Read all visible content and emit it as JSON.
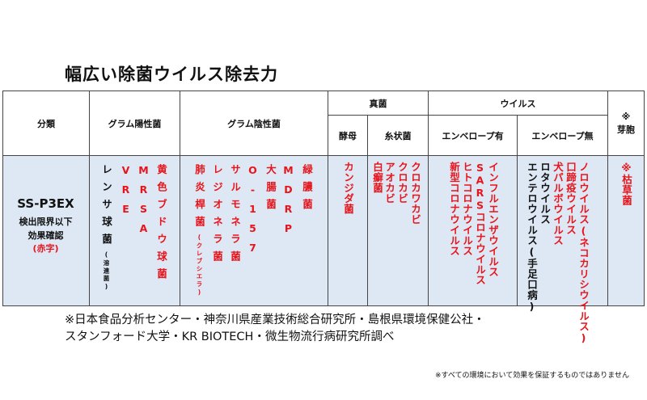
{
  "title": "幅広い除菌ウイルス除去力",
  "table": {
    "headers": {
      "classification": "分類",
      "gram_positive": "グラム陽性菌",
      "gram_negative": "グラム陰性菌",
      "fungi": "真菌",
      "yeast": "酵母",
      "mold": "糸状菌",
      "virus": "ウイルス",
      "enveloped": "エンベロープ有",
      "non_enveloped": "エンベロープ無",
      "spore_mark": "※",
      "spore": "芽胞"
    },
    "product": {
      "model": "SS-P3EX",
      "note_line1": "検出限界以下",
      "note_line2": "効果確認",
      "note_red": "(赤字)"
    },
    "gram_positive": [
      {
        "name": "レンサ球菌",
        "sub": "(溶連菌)",
        "confirmed": false
      },
      {
        "name": "VRE",
        "confirmed": true
      },
      {
        "name": "MRSA",
        "confirmed": true
      },
      {
        "name": "黄色ブドウ球菌",
        "confirmed": true
      }
    ],
    "gram_negative": [
      {
        "name": "肺炎桿菌",
        "sub": "(クレブシエラ)",
        "confirmed": true
      },
      {
        "name": "レジオネラ菌",
        "confirmed": true
      },
      {
        "name": "サルモネラ菌",
        "confirmed": true
      },
      {
        "name": "O-157",
        "confirmed": true
      },
      {
        "name": "大腸菌",
        "confirmed": true
      },
      {
        "name": "MDRP",
        "confirmed": true
      },
      {
        "name": "緑膿菌",
        "confirmed": true
      }
    ],
    "yeast": [
      {
        "name": "カンジダ菌",
        "confirmed": true
      }
    ],
    "mold": [
      {
        "name": "白癬菌",
        "confirmed": true
      },
      {
        "name": "アオカビ",
        "confirmed": true
      },
      {
        "name": "クロカビ",
        "confirmed": true
      },
      {
        "name": "クロカワカビ",
        "confirmed": true
      }
    ],
    "enveloped": [
      {
        "name": "新型コロナウイルス",
        "confirmed": true
      },
      {
        "name": "ヒトコロナウイルス",
        "confirmed": true
      },
      {
        "name": "SARSコロナウイルス",
        "confirmed": true
      },
      {
        "name": "インフルエンザウイルス",
        "confirmed": true
      }
    ],
    "non_enveloped": [
      {
        "name": "エンテロウイルス(手足口病)",
        "confirmed": false
      },
      {
        "name": "ロタウイルス",
        "confirmed": false
      },
      {
        "name": "犬パルボウイルス",
        "confirmed": true
      },
      {
        "name": "口蹄疫ウイルス",
        "confirmed": true
      },
      {
        "name": "ノロウイルス(ネコカリシウイルス)",
        "confirmed": true
      }
    ],
    "spore": [
      {
        "name": "※枯草菌",
        "confirmed": true
      }
    ]
  },
  "footnote_line1": "※日本食品分析センター・神奈川県産業技術総合研究所・島根県環境保健公社・",
  "footnote_line2": "スタンフォード大学・KR BIOTECH・微生物流行病研究所調べ",
  "disclaimer": "※すべての環境において効果を保証するものではありません",
  "colors": {
    "confirmed": "#e8141b",
    "unconfirmed": "#111111",
    "body_bg": "#dde8f4"
  }
}
